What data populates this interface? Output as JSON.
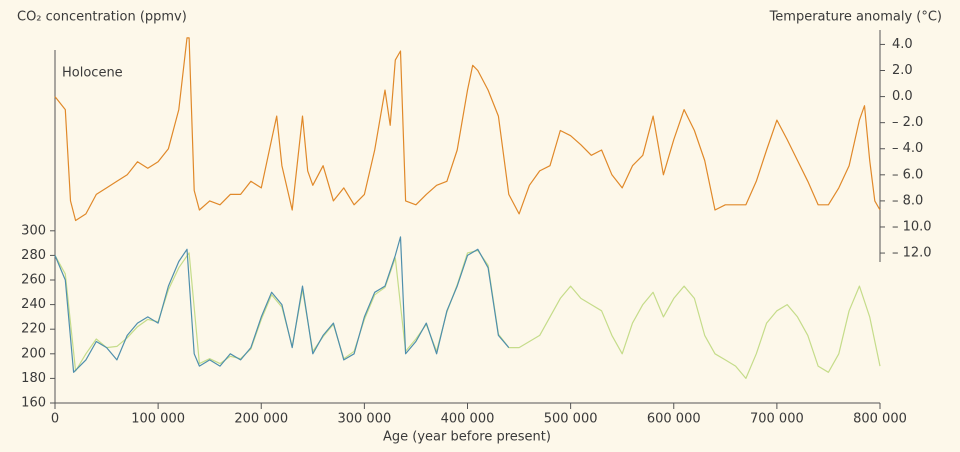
{
  "chart_data": {
    "type": "line",
    "title": "CO₂ concentration (ppmv)",
    "y2_title": "Temperature anomaly (°C)",
    "x_title": "Age (year before present)",
    "annotation": "Holocene",
    "xlim": [
      0,
      800000
    ],
    "xticks": [
      0,
      {
        "value": 100000,
        "label": "100 000"
      },
      {
        "value": 200000,
        "label": "200 000"
      },
      {
        "value": 300000,
        "label": "300 000"
      },
      {
        "value": 400000,
        "label": "400 000"
      },
      {
        "value": 500000,
        "label": "500 000"
      },
      {
        "value": 600000,
        "label": "600 000"
      },
      {
        "value": 700000,
        "label": "700 000"
      },
      {
        "value": 800000,
        "label": "800 000"
      }
    ],
    "ylim": [
      160,
      460
    ],
    "yticks": [
      160,
      180,
      200,
      220,
      240,
      260,
      280,
      300
    ],
    "y2lim": [
      -23.5,
      4.8
    ],
    "y2ticks": [
      {
        "value": 4,
        "label": "4.0"
      },
      {
        "value": 2,
        "label": "2.0"
      },
      {
        "value": 0,
        "label": "0.0"
      },
      {
        "value": -2,
        "label": "– 2.0"
      },
      {
        "value": -4,
        "label": "– 4.0"
      },
      {
        "value": -6,
        "label": "– 6.0"
      },
      {
        "value": -8,
        "label": "– 8.0"
      },
      {
        "value": -10,
        "label": "– 10.0"
      },
      {
        "value": -12,
        "label": "– 12.0"
      }
    ],
    "grid": false,
    "series": [
      {
        "color": "#e0892a",
        "axis": "y2",
        "x": [
          0,
          10000,
          15000,
          20000,
          30000,
          40000,
          50000,
          60000,
          70000,
          80000,
          90000,
          100000,
          110000,
          120000,
          128000,
          130000,
          135000,
          140000,
          150000,
          160000,
          170000,
          180000,
          190000,
          200000,
          210000,
          215000,
          220000,
          230000,
          240000,
          245000,
          250000,
          260000,
          270000,
          280000,
          290000,
          300000,
          310000,
          320000,
          325000,
          330000,
          335000,
          340000,
          350000,
          360000,
          370000,
          380000,
          390000,
          400000,
          405000,
          410000,
          420000,
          430000,
          440000,
          450000,
          460000,
          470000,
          480000,
          490000,
          500000,
          510000,
          520000,
          530000,
          540000,
          550000,
          560000,
          570000,
          580000,
          590000,
          600000,
          610000,
          620000,
          630000,
          640000,
          650000,
          660000,
          670000,
          680000,
          690000,
          700000,
          710000,
          720000,
          730000,
          740000,
          750000,
          760000,
          770000,
          780000,
          785000,
          790000,
          795000,
          800000
        ],
        "values": [
          0,
          -1,
          -8,
          -9.5,
          -9,
          -7.5,
          -7,
          -6.5,
          -6,
          -5,
          -5.5,
          -5,
          -4,
          -1,
          4.5,
          4.5,
          -7.2,
          -8.7,
          -8,
          -8.3,
          -7.5,
          -7.5,
          -6.5,
          -7,
          -3.3,
          -1.5,
          -5.3,
          -8.7,
          -1.5,
          -5.7,
          -6.8,
          -5.3,
          -8,
          -7,
          -8.3,
          -7.5,
          -4.1,
          0.5,
          -2.2,
          2.8,
          3.5,
          -8,
          -8.3,
          -7.5,
          -6.8,
          -6.5,
          -4.1,
          0.5,
          2.4,
          2,
          0.5,
          -1.5,
          -7.5,
          -9,
          -6.8,
          -5.7,
          -5.3,
          -2.6,
          -3,
          -3.7,
          -4.5,
          -4.1,
          -6,
          -7,
          -5.3,
          -4.5,
          -1.5,
          -6,
          -3.3,
          -1,
          -2.6,
          -4.9,
          -8.7,
          -8.3,
          -8.3,
          -8.3,
          -6.5,
          -4.1,
          -1.8,
          -3.3,
          -4.9,
          -6.5,
          -8.3,
          -8.3,
          -7,
          -5.3,
          -1.8,
          -0.7,
          -4.9,
          -8,
          -8.7
        ]
      },
      {
        "color": "#c5dc8a",
        "axis": "y",
        "x": [
          0,
          10000,
          20000,
          30000,
          40000,
          50000,
          60000,
          70000,
          80000,
          90000,
          100000,
          110000,
          120000,
          130000,
          140000,
          150000,
          160000,
          170000,
          180000,
          190000,
          200000,
          210000,
          220000,
          230000,
          240000,
          250000,
          260000,
          270000,
          280000,
          290000,
          300000,
          310000,
          320000,
          330000,
          340000,
          350000,
          360000,
          370000,
          380000,
          390000,
          400000,
          410000,
          420000,
          430000,
          440000,
          450000,
          460000,
          470000,
          480000,
          490000,
          500000,
          510000,
          520000,
          530000,
          540000,
          550000,
          560000,
          570000,
          580000,
          590000,
          600000,
          610000,
          620000,
          630000,
          640000,
          650000,
          660000,
          670000,
          680000,
          690000,
          700000,
          710000,
          720000,
          730000,
          740000,
          750000,
          760000,
          770000,
          780000,
          790000,
          800000
        ],
        "values": [
          280,
          265,
          186,
          200,
          212,
          205,
          206,
          213,
          222,
          228,
          226,
          252,
          270,
          282,
          192,
          196,
          192,
          198,
          196,
          204,
          228,
          248,
          238,
          206,
          252,
          202,
          214,
          224,
          196,
          202,
          228,
          248,
          254,
          278,
          202,
          212,
          224,
          202,
          234,
          256,
          282,
          284,
          272,
          216,
          205,
          205,
          210,
          215,
          230,
          245,
          255,
          245,
          240,
          235,
          215,
          200,
          225,
          240,
          250,
          230,
          245,
          255,
          245,
          215,
          200,
          195,
          190,
          180,
          200,
          225,
          235,
          240,
          230,
          215,
          190,
          185,
          200,
          235,
          255,
          230,
          190
        ]
      },
      {
        "color": "#4f8fac",
        "axis": "y",
        "x": [
          0,
          10000,
          18000,
          30000,
          40000,
          50000,
          60000,
          70000,
          80000,
          90000,
          100000,
          110000,
          120000,
          128000,
          135000,
          140000,
          150000,
          160000,
          170000,
          180000,
          190000,
          200000,
          210000,
          220000,
          230000,
          240000,
          250000,
          260000,
          270000,
          280000,
          290000,
          300000,
          310000,
          320000,
          330000,
          335000,
          340000,
          350000,
          360000,
          370000,
          380000,
          390000,
          400000,
          410000,
          420000,
          430000,
          440000
        ],
        "values": [
          280,
          260,
          185,
          195,
          210,
          205,
          195,
          215,
          225,
          230,
          225,
          255,
          275,
          285,
          200,
          190,
          195,
          190,
          200,
          195,
          205,
          230,
          250,
          240,
          205,
          255,
          200,
          215,
          225,
          195,
          200,
          230,
          250,
          255,
          280,
          295,
          200,
          210,
          225,
          200,
          235,
          255,
          280,
          285,
          270,
          215,
          205
        ]
      }
    ]
  }
}
